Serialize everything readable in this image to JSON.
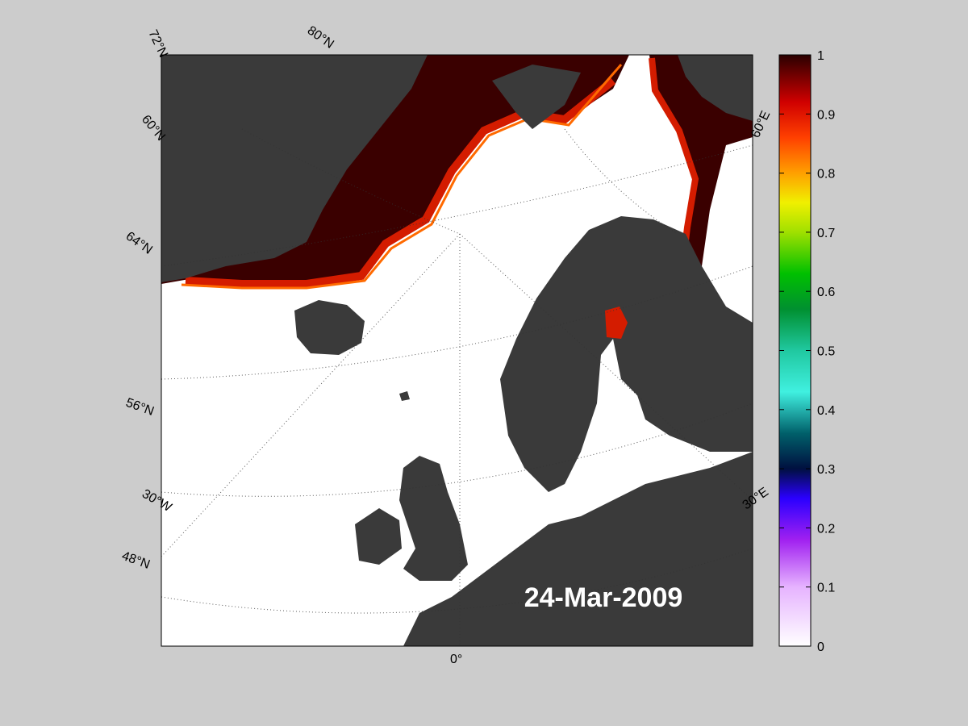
{
  "map": {
    "date_label": "24-Mar-2009",
    "lat_labels": [
      "72°N",
      "80°N",
      "60°N",
      "64°N",
      "56°N",
      "48°N"
    ],
    "lon_labels": [
      "30°W",
      "0°",
      "30°E",
      "60°E"
    ],
    "colors": {
      "land": "#3a3a3a",
      "open_water": "#ffffff",
      "ice_high": "#3a0000",
      "ice_mid": "#d41c00",
      "ice_edge": "#ff6a00",
      "frame": "#000000",
      "background": "#cccccc"
    }
  },
  "colorbar": {
    "ticks": [
      "1",
      "0.9",
      "0.8",
      "0.7",
      "0.6",
      "0.5",
      "0.4",
      "0.3",
      "0.2",
      "0.1",
      "0"
    ],
    "range": [
      0,
      1
    ],
    "colormap": "white-purple-blue-cyan-green-yellow-orange-red-black"
  }
}
